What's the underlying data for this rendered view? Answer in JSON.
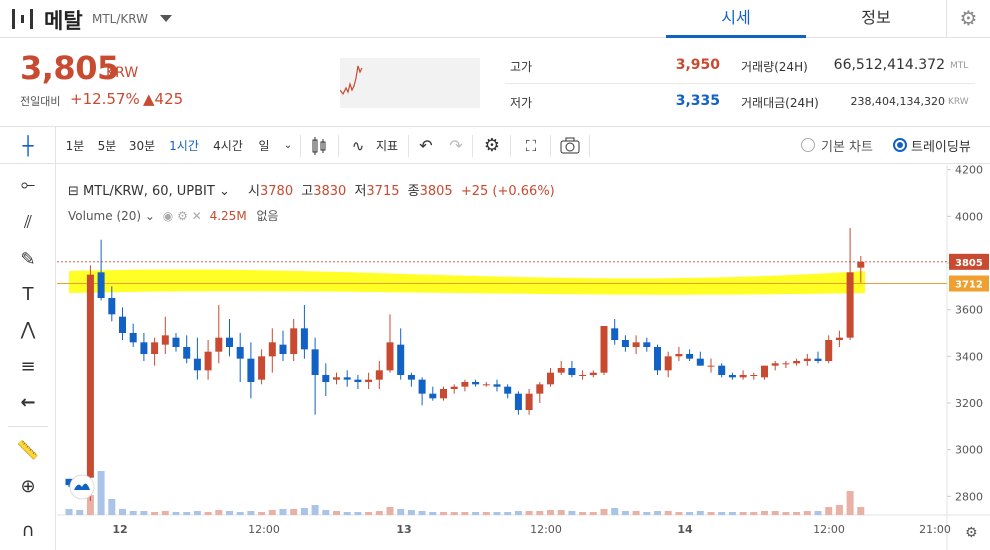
{
  "header": {
    "coin_name": "메탈",
    "pair": "MTL/KRW",
    "tabs": [
      "시세",
      "정보"
    ]
  },
  "price": {
    "current": "3,805",
    "unit": "KRW",
    "prev_label": "전일대비",
    "change_pct": "+12.57%",
    "change_amt": "▲425"
  },
  "stats": {
    "high_label": "고가",
    "high_value": "3,950",
    "low_label": "저가",
    "low_value": "3,335",
    "vol_label": "거래량(24H)",
    "vol_value": "66,512,414.372",
    "vol_unit": "MTL",
    "amt_label": "거래대금(24H)",
    "amt_value": "238,404,134,320",
    "amt_unit": "KRW"
  },
  "toolbar": {
    "intervals": [
      "1분",
      "5분",
      "30분",
      "1시간",
      "4시간",
      "일"
    ],
    "active_interval": "1시간",
    "indicator_label": "지표",
    "basic_chart_label": "기본 차트",
    "tradingview_label": "트레이딩뷰"
  },
  "legend": {
    "symbol": "MTL/KRW, 60, UPBIT",
    "o_label": "시",
    "o": "3780",
    "h_label": "고",
    "h": "3830",
    "l_label": "저",
    "l": "3715",
    "c_label": "종",
    "c": "3805",
    "chg": "+25 (+0.66%)",
    "volume_label": "Volume (20)",
    "volume_value": "4.25M",
    "volume_none": "없음"
  },
  "colors": {
    "up": "#c84a31",
    "down": "#1261c4",
    "highlight": "#ffff00"
  },
  "icons": [
    "logo-bars-icon",
    "dropdown-icon",
    "gear-icon",
    "crosshair-icon",
    "trendline-icon",
    "fib-icon",
    "brush-icon",
    "text-icon",
    "pattern-icon",
    "measure-icon",
    "back-arrow-icon",
    "ruler-icon",
    "zoom-icon",
    "magnet-icon",
    "candle-type-icon",
    "indicator-icon",
    "undo-icon",
    "redo-icon",
    "settings-icon",
    "fullscreen-icon",
    "camera-icon"
  ],
  "chart_data": {
    "type": "candlestick",
    "y_ticks": [
      2800,
      3000,
      3200,
      3400,
      3600,
      3800,
      4000,
      4200
    ],
    "x_ticks": [
      "12",
      "12:00",
      "13",
      "12:00",
      "14",
      "12:00",
      "21:00"
    ],
    "price_labels": {
      "current": "3805",
      "level": "3712"
    },
    "ylim": [
      2720,
      4220
    ],
    "candles": [
      [
        2875,
        2875,
        2840,
        2848
      ],
      [
        2870,
        2880,
        2850,
        2860
      ],
      [
        2880,
        3790,
        2780,
        3750
      ],
      [
        3760,
        3900,
        3640,
        3650
      ],
      [
        3650,
        3700,
        3550,
        3580
      ],
      [
        3570,
        3610,
        3470,
        3500
      ],
      [
        3500,
        3540,
        3440,
        3460
      ],
      [
        3460,
        3500,
        3380,
        3410
      ],
      [
        3410,
        3480,
        3360,
        3460
      ],
      [
        3450,
        3570,
        3410,
        3490
      ],
      [
        3480,
        3500,
        3420,
        3440
      ],
      [
        3440,
        3490,
        3370,
        3390
      ],
      [
        3390,
        3480,
        3300,
        3340
      ],
      [
        3340,
        3470,
        3300,
        3420
      ],
      [
        3420,
        3620,
        3370,
        3480
      ],
      [
        3480,
        3560,
        3400,
        3440
      ],
      [
        3440,
        3500,
        3290,
        3390
      ],
      [
        3390,
        3460,
        3220,
        3290
      ],
      [
        3300,
        3430,
        3280,
        3400
      ],
      [
        3400,
        3520,
        3330,
        3460
      ],
      [
        3450,
        3510,
        3380,
        3410
      ],
      [
        3410,
        3560,
        3380,
        3520
      ],
      [
        3520,
        3620,
        3390,
        3430
      ],
      [
        3430,
        3480,
        3150,
        3320
      ],
      [
        3320,
        3370,
        3230,
        3290
      ],
      [
        3300,
        3330,
        3280,
        3310
      ],
      [
        3310,
        3340,
        3270,
        3300
      ],
      [
        3300,
        3320,
        3260,
        3290
      ],
      [
        3290,
        3330,
        3260,
        3300
      ],
      [
        3300,
        3380,
        3260,
        3340
      ],
      [
        3340,
        3580,
        3330,
        3460
      ],
      [
        3450,
        3520,
        3300,
        3320
      ],
      [
        3320,
        3330,
        3270,
        3300
      ],
      [
        3300,
        3310,
        3190,
        3240
      ],
      [
        3240,
        3270,
        3210,
        3220
      ],
      [
        3220,
        3270,
        3210,
        3260
      ],
      [
        3260,
        3280,
        3240,
        3270
      ],
      [
        3270,
        3300,
        3250,
        3290
      ],
      [
        3290,
        3300,
        3270,
        3280
      ],
      [
        3280,
        3290,
        3270,
        3280
      ],
      [
        3280,
        3300,
        3250,
        3270
      ],
      [
        3270,
        3280,
        3220,
        3240
      ],
      [
        3240,
        3250,
        3150,
        3170
      ],
      [
        3170,
        3260,
        3150,
        3240
      ],
      [
        3240,
        3290,
        3200,
        3280
      ],
      [
        3280,
        3350,
        3270,
        3330
      ],
      [
        3330,
        3380,
        3320,
        3350
      ],
      [
        3350,
        3380,
        3310,
        3320
      ],
      [
        3320,
        3340,
        3300,
        3320
      ],
      [
        3320,
        3340,
        3310,
        3330
      ],
      [
        3330,
        3530,
        3320,
        3530
      ],
      [
        3520,
        3560,
        3450,
        3470
      ],
      [
        3470,
        3490,
        3420,
        3440
      ],
      [
        3440,
        3490,
        3410,
        3460
      ],
      [
        3460,
        3480,
        3420,
        3440
      ],
      [
        3440,
        3450,
        3320,
        3340
      ],
      [
        3340,
        3420,
        3310,
        3400
      ],
      [
        3400,
        3440,
        3380,
        3410
      ],
      [
        3410,
        3430,
        3380,
        3390
      ],
      [
        3390,
        3420,
        3360,
        3360
      ],
      [
        3360,
        3390,
        3330,
        3360
      ],
      [
        3360,
        3370,
        3310,
        3320
      ],
      [
        3320,
        3330,
        3300,
        3310
      ],
      [
        3310,
        3340,
        3300,
        3320
      ],
      [
        3320,
        3330,
        3300,
        3320
      ],
      [
        3310,
        3360,
        3300,
        3360
      ],
      [
        3360,
        3380,
        3340,
        3370
      ],
      [
        3370,
        3380,
        3350,
        3370
      ],
      [
        3370,
        3390,
        3360,
        3380
      ],
      [
        3380,
        3410,
        3360,
        3390
      ],
      [
        3390,
        3420,
        3370,
        3380
      ],
      [
        3380,
        3490,
        3370,
        3470
      ],
      [
        3470,
        3510,
        3440,
        3480
      ],
      [
        3480,
        3950,
        3470,
        3760
      ],
      [
        3780,
        3830,
        3715,
        3805
      ]
    ],
    "volumes": [
      0.3,
      0.25,
      1.0,
      2.2,
      0.8,
      0.3,
      0.2,
      0.2,
      0.15,
      0.2,
      0.15,
      0.15,
      0.2,
      0.15,
      0.25,
      0.2,
      0.15,
      0.2,
      0.15,
      0.25,
      0.3,
      0.3,
      0.35,
      0.5,
      0.25,
      0.2,
      0.15,
      0.15,
      0.15,
      0.2,
      0.4,
      0.3,
      0.25,
      0.2,
      0.15,
      0.15,
      0.15,
      0.15,
      0.15,
      0.15,
      0.15,
      0.15,
      0.2,
      0.2,
      0.2,
      0.25,
      0.25,
      0.2,
      0.15,
      0.15,
      0.3,
      0.35,
      0.2,
      0.2,
      0.15,
      0.2,
      0.2,
      0.15,
      0.15,
      0.2,
      0.15,
      0.15,
      0.15,
      0.15,
      0.15,
      0.2,
      0.2,
      0.15,
      0.15,
      0.2,
      0.2,
      0.4,
      0.5,
      1.2,
      0.4
    ]
  }
}
